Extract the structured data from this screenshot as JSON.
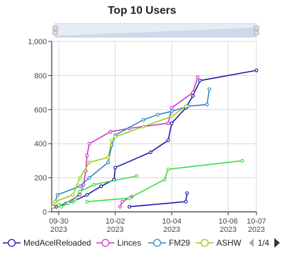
{
  "chart_data": {
    "type": "line",
    "title": "Top 10 Users",
    "xlabel": "",
    "ylabel": "",
    "x_range": [
      "2023-09-29T18:00",
      "2023-10-07T00:00"
    ],
    "ylim": [
      0,
      1000
    ],
    "y_ticks": [
      0,
      200,
      400,
      600,
      800,
      1000
    ],
    "y_tick_labels": [
      "0",
      "200",
      "400",
      "600",
      "800",
      "1,000"
    ],
    "x_ticks": [
      {
        "x": "2023-09-30T00:00",
        "line1": "09-30",
        "line2": "2023"
      },
      {
        "x": "2023-10-02T00:00",
        "line1": "10-02",
        "line2": "2023"
      },
      {
        "x": "2023-10-04T00:00",
        "line1": "10-04",
        "line2": "2023"
      },
      {
        "x": "2023-10-06T00:00",
        "line1": "10-06",
        "line2": "2023"
      },
      {
        "x": "2023-10-07T00:00",
        "line1": "10-07",
        "line2": "2023"
      }
    ],
    "grid": true,
    "legend": {
      "position": "bottom",
      "page": "1/4"
    },
    "series": [
      {
        "name": "MedAcelReloaded",
        "color": "#1a1aa8",
        "points": [
          [
            "2023-09-29T22:00",
            30
          ],
          [
            "2023-09-30T12:00",
            60
          ],
          [
            "2023-10-01T00:00",
            100
          ],
          [
            "2023-10-01T12:00",
            150
          ],
          [
            "2023-10-01T23:00",
            190
          ],
          [
            "2023-10-02T00:00",
            260
          ],
          [
            "2023-10-03T06:00",
            350
          ],
          [
            "2023-10-03T21:00",
            420
          ],
          [
            "2023-10-04T00:00",
            520
          ],
          [
            "2023-10-04T12:00",
            610
          ],
          [
            "2023-10-04T18:00",
            680
          ],
          [
            "2023-10-05T00:00",
            770
          ],
          [
            "2023-10-07T00:00",
            830
          ]
        ]
      },
      {
        "name": "MedAcelReloaded",
        "color": "#1a1aa8",
        "points": [
          [
            "2023-10-02T12:00",
            30
          ],
          [
            "2023-10-04T12:00",
            60
          ],
          [
            "2023-10-04T13:00",
            110
          ]
        ]
      },
      {
        "name": "Linces",
        "color": "#cc33cc",
        "points": [
          [
            "2023-09-29T20:00",
            30
          ],
          [
            "2023-09-30T06:00",
            50
          ],
          [
            "2023-09-30T18:00",
            100
          ],
          [
            "2023-09-30T21:00",
            160
          ],
          [
            "2023-09-30T23:00",
            240
          ],
          [
            "2023-10-01T00:00",
            330
          ],
          [
            "2023-10-01T02:00",
            400
          ],
          [
            "2023-10-01T20:00",
            470
          ],
          [
            "2023-10-02T12:00",
            490
          ],
          [
            "2023-10-03T21:00",
            520
          ],
          [
            "2023-10-04T00:00",
            610
          ],
          [
            "2023-10-04T18:00",
            700
          ],
          [
            "2023-10-04T22:00",
            790
          ]
        ]
      },
      {
        "name": "Linces",
        "color": "#cc33cc",
        "points": [
          [
            "2023-10-02T04:00",
            30
          ],
          [
            "2023-10-02T06:00",
            60
          ],
          [
            "2023-10-02T14:00",
            90
          ]
        ]
      },
      {
        "name": "FM29",
        "color": "#2e86c1",
        "points": [
          [
            "2023-09-29T21:00",
            60
          ],
          [
            "2023-09-29T23:00",
            100
          ],
          [
            "2023-09-30T18:00",
            150
          ],
          [
            "2023-10-01T02:00",
            200
          ],
          [
            "2023-10-01T18:00",
            290
          ],
          [
            "2023-10-01T21:00",
            390
          ],
          [
            "2023-10-02T00:00",
            450
          ],
          [
            "2023-10-03T00:00",
            540
          ],
          [
            "2023-10-03T12:00",
            570
          ],
          [
            "2023-10-04T00:00",
            590
          ],
          [
            "2023-10-04T14:00",
            620
          ],
          [
            "2023-10-05T06:00",
            630
          ],
          [
            "2023-10-05T08:00",
            720
          ]
        ]
      },
      {
        "name": "ASHW",
        "color": "#99cc11",
        "points": [
          [
            "2023-09-29T19:00",
            30
          ],
          [
            "2023-09-29T21:00",
            60
          ],
          [
            "2023-09-30T12:00",
            100
          ],
          [
            "2023-09-30T18:00",
            200
          ],
          [
            "2023-10-01T02:00",
            290
          ],
          [
            "2023-10-01T18:00",
            320
          ],
          [
            "2023-10-01T21:00",
            420
          ],
          [
            "2023-10-02T00:00",
            440
          ],
          [
            "2023-10-03T00:00",
            500
          ],
          [
            "2023-10-04T00:00",
            560
          ],
          [
            "2023-10-04T12:00",
            620
          ]
        ]
      },
      {
        "name": "",
        "color": "#33dd44",
        "points": [
          [
            "2023-09-30T00:00",
            40
          ],
          [
            "2023-09-30T12:00",
            60
          ],
          [
            "2023-09-30T18:00",
            120
          ],
          [
            "2023-10-01T06:00",
            160
          ],
          [
            "2023-10-02T18:00",
            210
          ]
        ]
      },
      {
        "name": "",
        "color": "#33dd44",
        "points": [
          [
            "2023-10-01T00:00",
            60
          ],
          [
            "2023-10-02T12:00",
            80
          ],
          [
            "2023-10-03T18:00",
            190
          ],
          [
            "2023-10-03T21:00",
            250
          ],
          [
            "2023-10-06T12:00",
            300
          ]
        ]
      },
      {
        "name": "",
        "color": "#33dd44",
        "points": [
          [
            "2023-09-30T02:00",
            30
          ],
          [
            "2023-09-30T08:00",
            50
          ],
          [
            "2023-09-30T14:00",
            70
          ]
        ]
      }
    ]
  },
  "legend_items": [
    {
      "name": "MedAcelReloaded",
      "color": "#1a1aa8"
    },
    {
      "name": "Linces",
      "color": "#cc33cc"
    },
    {
      "name": "FM29",
      "color": "#2e86c1"
    },
    {
      "name": "ASHW",
      "color": "#99cc11"
    }
  ],
  "navigator": {
    "fill": "#e6ebf5",
    "series_color": "#c7d3e6"
  },
  "colors": {
    "axis": "#333333",
    "grid": "#d8d8d8",
    "nav_handle": "#999999",
    "arrow_enabled": "#333333",
    "arrow_disabled": "#aaaaaa"
  }
}
